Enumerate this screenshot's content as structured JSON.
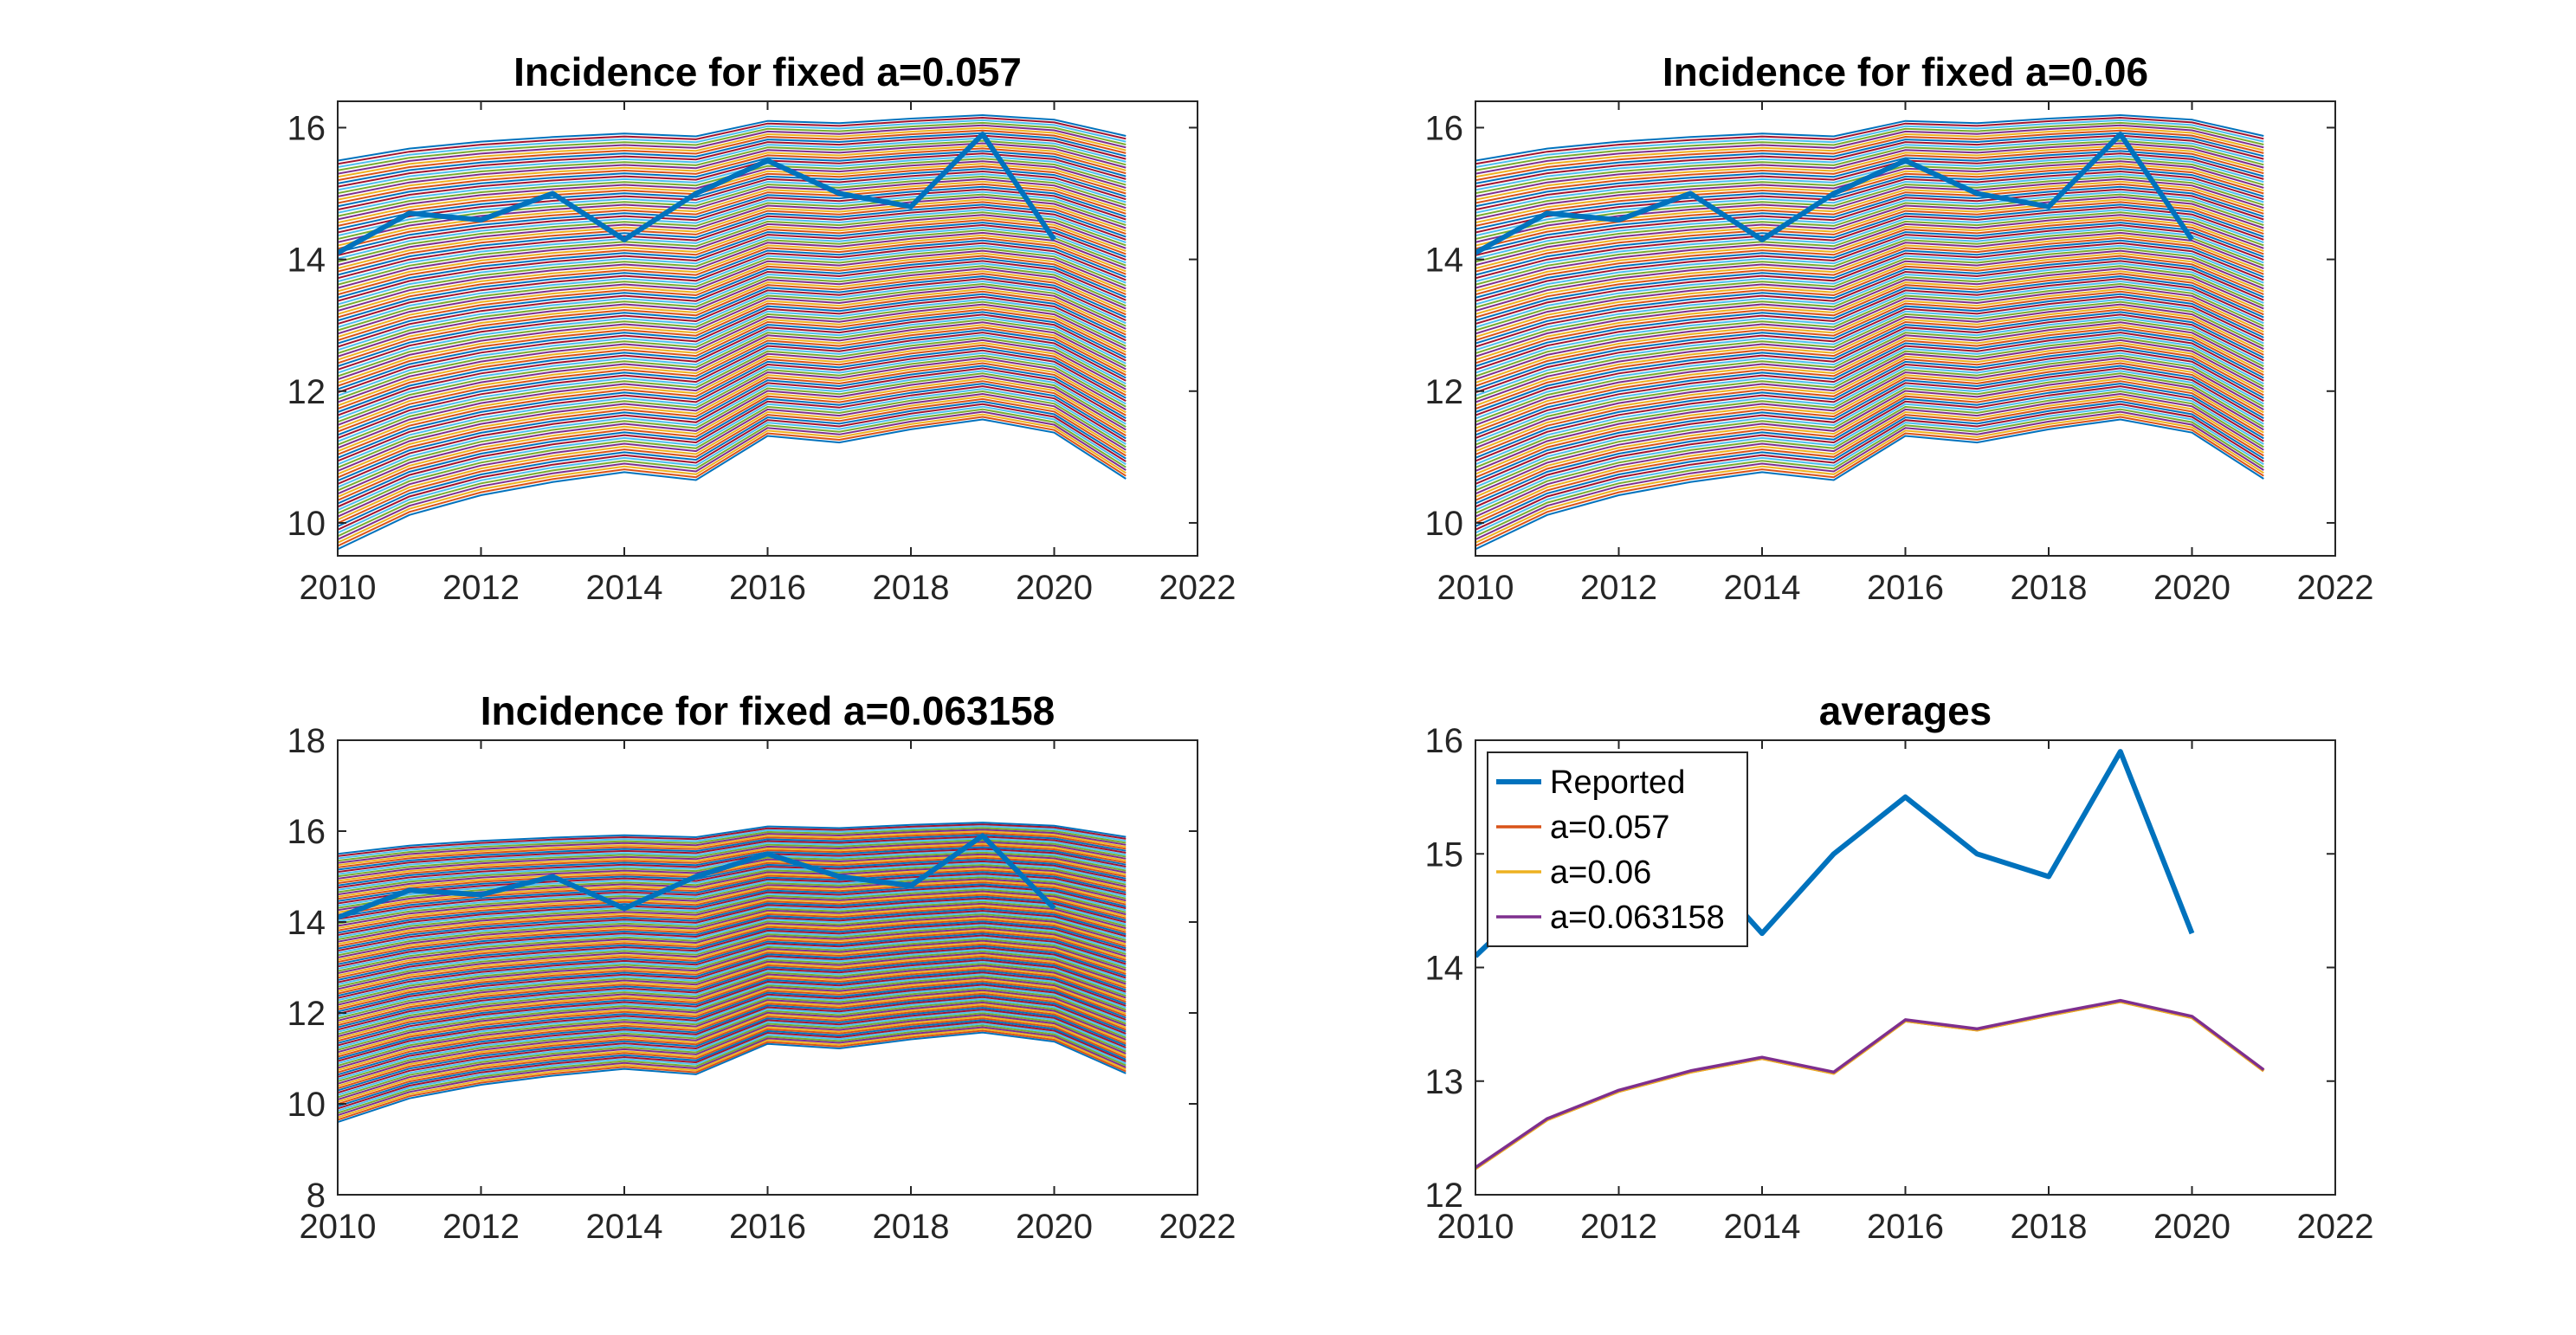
{
  "chart_data": [
    {
      "type": "line",
      "title": "Incidence for fixed a=0.057",
      "xlim": [
        2010,
        2022
      ],
      "ylim": [
        9.5,
        16.4
      ],
      "xticks": [
        "2010",
        "2012",
        "2014",
        "2016",
        "2018",
        "2020",
        "2022"
      ],
      "yticks": [
        "10",
        "12",
        "14",
        "16"
      ],
      "ensemble": {
        "count": 120,
        "x": [
          2010,
          2011,
          2012,
          2013,
          2014,
          2015,
          2016,
          2017,
          2018,
          2019,
          2020,
          2021
        ],
        "shape": [
          0,
          0.52,
          0.82,
          1.02,
          1.17,
          1.05,
          1.72,
          1.62,
          1.82,
          1.97,
          1.77,
          1.07
        ],
        "start_min": 9.6,
        "start_max": 15.5,
        "scale_low": 1.0,
        "scale_high": 0.35
      },
      "reported": {
        "x": [
          2010,
          2011,
          2012,
          2013,
          2014,
          2015,
          2016,
          2017,
          2018,
          2019,
          2020
        ],
        "values": [
          14.1,
          14.7,
          14.6,
          15.0,
          14.3,
          15.0,
          15.5,
          15.0,
          14.8,
          15.9,
          14.3
        ],
        "color": "#0072BD"
      }
    },
    {
      "type": "line",
      "title": "Incidence for fixed a=0.06",
      "xlim": [
        2010,
        2022
      ],
      "ylim": [
        9.5,
        16.4
      ],
      "xticks": [
        "2010",
        "2012",
        "2014",
        "2016",
        "2018",
        "2020",
        "2022"
      ],
      "yticks": [
        "10",
        "12",
        "14",
        "16"
      ],
      "ensemble": {
        "count": 120,
        "x": [
          2010,
          2011,
          2012,
          2013,
          2014,
          2015,
          2016,
          2017,
          2018,
          2019,
          2020,
          2021
        ],
        "shape": [
          0,
          0.52,
          0.82,
          1.02,
          1.17,
          1.05,
          1.72,
          1.62,
          1.82,
          1.97,
          1.77,
          1.07
        ],
        "start_min": 9.6,
        "start_max": 15.5,
        "scale_low": 1.0,
        "scale_high": 0.35
      },
      "reported": {
        "x": [
          2010,
          2011,
          2012,
          2013,
          2014,
          2015,
          2016,
          2017,
          2018,
          2019,
          2020
        ],
        "values": [
          14.1,
          14.7,
          14.6,
          15.0,
          14.3,
          15.0,
          15.5,
          15.0,
          14.8,
          15.9,
          14.3
        ],
        "color": "#0072BD"
      }
    },
    {
      "type": "line",
      "title": "Incidence for fixed a=0.063158",
      "xlim": [
        2010,
        2022
      ],
      "ylim": [
        8,
        18
      ],
      "xticks": [
        "2010",
        "2012",
        "2014",
        "2016",
        "2018",
        "2020",
        "2022"
      ],
      "yticks": [
        "8",
        "10",
        "12",
        "14",
        "16",
        "18"
      ],
      "ensemble": {
        "count": 120,
        "x": [
          2010,
          2011,
          2012,
          2013,
          2014,
          2015,
          2016,
          2017,
          2018,
          2019,
          2020,
          2021
        ],
        "shape": [
          0,
          0.52,
          0.82,
          1.02,
          1.17,
          1.05,
          1.72,
          1.62,
          1.82,
          1.97,
          1.77,
          1.07
        ],
        "start_min": 9.6,
        "start_max": 15.5,
        "scale_low": 1.0,
        "scale_high": 0.35
      },
      "reported": {
        "x": [
          2010,
          2011,
          2012,
          2013,
          2014,
          2015,
          2016,
          2017,
          2018,
          2019,
          2020
        ],
        "values": [
          14.1,
          14.7,
          14.6,
          15.0,
          14.3,
          15.0,
          15.5,
          15.0,
          14.8,
          15.9,
          14.3
        ],
        "color": "#0072BD"
      }
    },
    {
      "type": "line",
      "title": "averages",
      "xlim": [
        2010,
        2022
      ],
      "ylim": [
        12,
        16
      ],
      "xticks": [
        "2010",
        "2012",
        "2014",
        "2016",
        "2018",
        "2020",
        "2022"
      ],
      "yticks": [
        "12",
        "13",
        "14",
        "15",
        "16"
      ],
      "legend": "top-left",
      "series": [
        {
          "name": "Reported",
          "x": [
            2010,
            2011,
            2012,
            2013,
            2014,
            2015,
            2016,
            2017,
            2018,
            2019,
            2020
          ],
          "values": [
            14.1,
            14.7,
            14.6,
            15.0,
            14.3,
            15.0,
            15.5,
            15.0,
            14.8,
            15.9,
            14.3
          ],
          "color": "#0072BD"
        },
        {
          "name": "a=0.057",
          "x": [
            2010,
            2011,
            2012,
            2013,
            2014,
            2015,
            2016,
            2017,
            2018,
            2019,
            2020,
            2021
          ],
          "values": [
            12.23,
            12.66,
            12.91,
            13.08,
            13.2,
            13.07,
            13.53,
            13.45,
            13.58,
            13.7,
            13.56,
            13.09
          ],
          "color": "#D95319"
        },
        {
          "name": "a=0.06",
          "x": [
            2010,
            2011,
            2012,
            2013,
            2014,
            2015,
            2016,
            2017,
            2018,
            2019,
            2020,
            2021
          ],
          "values": [
            12.23,
            12.66,
            12.91,
            13.08,
            13.2,
            13.07,
            13.53,
            13.45,
            13.58,
            13.7,
            13.56,
            13.09
          ],
          "color": "#EDB120"
        },
        {
          "name": "a=0.063158",
          "x": [
            2010,
            2011,
            2012,
            2013,
            2014,
            2015,
            2016,
            2017,
            2018,
            2019,
            2020,
            2021
          ],
          "values": [
            12.24,
            12.67,
            12.92,
            13.09,
            13.21,
            13.08,
            13.54,
            13.46,
            13.59,
            13.71,
            13.57,
            13.1
          ],
          "color": "#7E2F8E"
        }
      ]
    }
  ],
  "colors": [
    "#0072BD",
    "#D95319",
    "#EDB120",
    "#7E2F8E",
    "#77AC30",
    "#4DBEEE",
    "#A2142F"
  ]
}
